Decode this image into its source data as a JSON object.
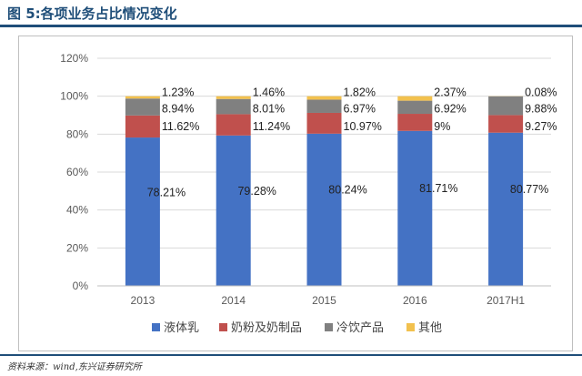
{
  "title": "图 5:各项业务占比情况变化",
  "source": "资料来源：wind,东兴证券研究所",
  "chart_data": {
    "type": "bar",
    "stacked": true,
    "categories": [
      "2013",
      "2014",
      "2015",
      "2016",
      "2017H1"
    ],
    "ylim": [
      0,
      120
    ],
    "yticks": [
      "0%",
      "20%",
      "40%",
      "60%",
      "80%",
      "100%",
      "120%"
    ],
    "grid": true,
    "legend_position": "bottom",
    "series": [
      {
        "name": "液体乳",
        "color": "#4472c4",
        "values": [
          78.21,
          79.28,
          80.24,
          81.71,
          80.77
        ],
        "labels": [
          "78.21%",
          "79.28%",
          "80.24%",
          "81.71%",
          "80.77%"
        ]
      },
      {
        "name": "奶粉及奶制品",
        "color": "#c0504d",
        "values": [
          11.62,
          11.24,
          10.97,
          9,
          9.27
        ],
        "labels": [
          "11.62%",
          "11.24%",
          "10.97%",
          "9%",
          "9.27%"
        ]
      },
      {
        "name": "冷饮产品",
        "color": "#808080",
        "values": [
          8.94,
          8.01,
          6.97,
          6.92,
          9.88
        ],
        "labels": [
          "8.94%",
          "8.01%",
          "6.97%",
          "6.92%",
          "9.88%"
        ]
      },
      {
        "name": "其他",
        "color": "#f2c14e",
        "values": [
          1.23,
          1.46,
          1.82,
          2.37,
          0.08
        ],
        "labels": [
          "1.23%",
          "1.46%",
          "1.82%",
          "2.37%",
          "0.08%"
        ]
      }
    ]
  }
}
